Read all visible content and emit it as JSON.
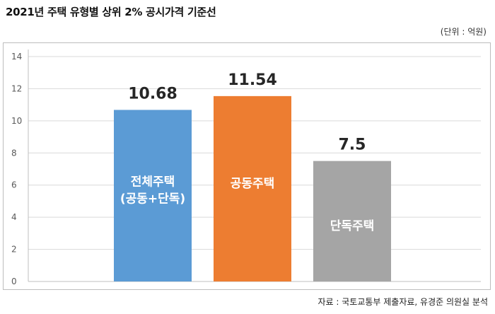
{
  "header": {
    "title": "2021년 주택 유형별 상위 2% 공시가격 기준선",
    "unit": "(단위 : 억원)"
  },
  "footer": {
    "source": "자료 : 국토교통부 제출자료, 유경준 의원실 분석"
  },
  "colors": {
    "bar_1": "#5b9bd5",
    "bar_2": "#ed7d31",
    "bar_3": "#a5a5a5",
    "gridline": "#d9d9d9",
    "axis": "#bfbfbf"
  },
  "chart_data": {
    "type": "bar",
    "title": "",
    "xlabel": "",
    "ylabel": "",
    "ylim": [
      0,
      14
    ],
    "yticks": [
      0,
      2,
      4,
      6,
      8,
      10,
      12,
      14
    ],
    "grid": true,
    "categories": [
      [
        "전체주택",
        "(공동+단독)"
      ],
      [
        "공동주택"
      ],
      [
        "단독주택"
      ]
    ],
    "values": [
      10.68,
      11.54,
      7.5
    ],
    "value_labels": [
      "10.68",
      "11.54",
      "7.5"
    ]
  }
}
